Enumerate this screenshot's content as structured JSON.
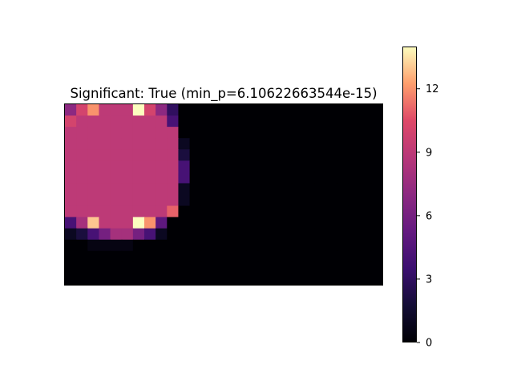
{
  "chart_data": {
    "type": "heatmap",
    "title": "Significant: True (min_p=6.10622663544e-15)",
    "colormap": "magma",
    "vmin": 0,
    "vmax": 14,
    "rows": 16,
    "cols": 28,
    "colorbar_ticks": [
      0,
      3,
      6,
      9,
      12
    ],
    "colorbar_tick_labels": [
      "0",
      "3",
      "6",
      "9",
      "12"
    ],
    "xlabel": "",
    "ylabel": "",
    "values": [
      [
        7,
        10,
        12,
        9,
        9,
        9,
        14,
        10,
        7,
        3,
        0,
        0,
        0,
        0,
        0,
        0,
        0,
        0,
        0,
        0,
        0,
        0,
        0,
        0,
        0,
        0,
        0,
        0
      ],
      [
        10,
        9,
        9,
        9,
        9,
        9,
        9,
        9,
        9,
        4,
        0,
        0,
        0,
        0,
        0,
        0,
        0,
        0,
        0,
        0,
        0,
        0,
        0,
        0,
        0,
        0,
        0,
        0
      ],
      [
        9,
        9,
        9,
        9,
        9,
        9,
        9,
        9,
        9,
        9,
        0,
        0,
        0,
        0,
        0,
        0,
        0,
        0,
        0,
        0,
        0,
        0,
        0,
        0,
        0,
        0,
        0,
        0
      ],
      [
        9,
        9,
        9,
        9,
        9,
        9,
        9,
        9,
        9,
        9,
        1,
        0,
        0,
        0,
        0,
        0,
        0,
        0,
        0,
        0,
        0,
        0,
        0,
        0,
        0,
        0,
        0,
        0
      ],
      [
        9,
        9,
        9,
        9,
        9,
        9,
        9,
        9,
        9,
        9,
        2,
        0,
        0,
        0,
        0,
        0,
        0,
        0,
        0,
        0,
        0,
        0,
        0,
        0,
        0,
        0,
        0,
        0
      ],
      [
        9,
        9,
        9,
        9,
        9,
        9,
        9,
        9,
        9,
        9,
        4,
        0,
        0,
        0,
        0,
        0,
        0,
        0,
        0,
        0,
        0,
        0,
        0,
        0,
        0,
        0,
        0,
        0
      ],
      [
        9,
        9,
        9,
        9,
        9,
        9,
        9,
        9,
        9,
        9,
        4,
        0,
        0,
        0,
        0,
        0,
        0,
        0,
        0,
        0,
        0,
        0,
        0,
        0,
        0,
        0,
        0,
        0
      ],
      [
        9,
        9,
        9,
        9,
        9,
        9,
        9,
        9,
        9,
        9,
        1,
        0,
        0,
        0,
        0,
        0,
        0,
        0,
        0,
        0,
        0,
        0,
        0,
        0,
        0,
        0,
        0,
        0
      ],
      [
        9,
        9,
        9,
        9,
        9,
        9,
        9,
        9,
        9,
        9,
        1,
        0,
        0,
        0,
        0,
        0,
        0,
        0,
        0,
        0,
        0,
        0,
        0,
        0,
        0,
        0,
        0,
        0
      ],
      [
        9,
        9,
        9,
        9,
        9,
        9,
        9,
        9,
        9,
        11,
        0,
        0,
        0,
        0,
        0,
        0,
        0,
        0,
        0,
        0,
        0,
        0,
        0,
        0,
        0,
        0,
        0,
        0
      ],
      [
        4,
        8,
        13,
        9,
        9,
        9,
        14,
        12,
        5,
        0,
        0,
        0,
        0,
        0,
        0,
        0,
        0,
        0,
        0,
        0,
        0,
        0,
        0,
        0,
        0,
        0,
        0,
        0
      ],
      [
        1,
        2,
        4,
        6,
        8,
        8,
        6,
        4,
        1,
        0,
        0,
        0,
        0,
        0,
        0,
        0,
        0,
        0,
        0,
        0,
        0,
        0,
        0,
        0,
        0,
        0,
        0,
        0
      ],
      [
        0,
        0,
        0.5,
        0.5,
        0.5,
        0.5,
        0,
        0,
        0,
        0,
        0,
        0,
        0,
        0,
        0,
        0,
        0,
        0,
        0,
        0,
        0,
        0,
        0,
        0,
        0,
        0,
        0,
        0
      ],
      [
        0,
        0,
        0,
        0,
        0,
        0,
        0,
        0,
        0,
        0,
        0,
        0,
        0,
        0,
        0,
        0,
        0,
        0,
        0,
        0,
        0,
        0,
        0,
        0,
        0,
        0,
        0,
        0
      ],
      [
        0,
        0,
        0,
        0,
        0,
        0,
        0,
        0,
        0,
        0,
        0,
        0,
        0,
        0,
        0,
        0,
        0,
        0,
        0,
        0,
        0,
        0,
        0,
        0,
        0,
        0,
        0,
        0
      ],
      [
        0,
        0,
        0,
        0,
        0,
        0,
        0,
        0,
        0,
        0,
        0,
        0,
        0,
        0,
        0,
        0,
        0,
        0,
        0,
        0,
        0,
        0,
        0,
        0,
        0,
        0,
        0,
        0
      ]
    ]
  }
}
